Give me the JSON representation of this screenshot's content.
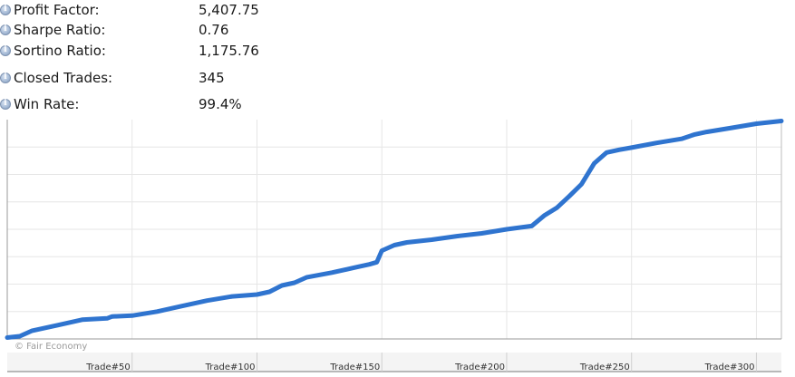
{
  "stats": [
    {
      "label": "Profit Factor:",
      "value": "5,407.75"
    },
    {
      "label": "Sharpe Ratio:",
      "value": "0.76"
    },
    {
      "label": "Sortino Ratio:",
      "value": "1,175.76"
    },
    {
      "label": "Closed Trades:",
      "value": "345"
    },
    {
      "label": "Win Rate:",
      "value": "99.4%"
    }
  ],
  "chart_data": {
    "type": "line",
    "title": "",
    "xlabel": "",
    "ylabel": "",
    "x_tick_labels": [
      "Trade#50",
      "Trade#100",
      "Trade#150",
      "Trade#200",
      "Trade#250",
      "Trade#300"
    ],
    "x_tick_values": [
      50,
      100,
      150,
      200,
      250,
      300
    ],
    "xlim": [
      0,
      310
    ],
    "ylim": [
      0,
      8
    ],
    "grid": true,
    "y_tick_labels_shown": false,
    "line_color": "#2f74cf",
    "watermark": "© Fair Economy",
    "series": [
      {
        "x": [
          0,
          5,
          10,
          20,
          30,
          40,
          42,
          50,
          60,
          70,
          80,
          90,
          100,
          105,
          110,
          115,
          120,
          130,
          140,
          145,
          148,
          150,
          155,
          160,
          170,
          180,
          190,
          200,
          210,
          215,
          220,
          225,
          230,
          235,
          240,
          245,
          250,
          260,
          270,
          275,
          280,
          290,
          300,
          310
        ],
        "y": [
          0.05,
          0.1,
          0.3,
          0.5,
          0.7,
          0.75,
          0.82,
          0.85,
          1.0,
          1.2,
          1.4,
          1.55,
          1.62,
          1.72,
          1.95,
          2.05,
          2.25,
          2.42,
          2.62,
          2.72,
          2.8,
          3.22,
          3.42,
          3.52,
          3.62,
          3.75,
          3.85,
          4.0,
          4.12,
          4.5,
          4.78,
          5.2,
          5.65,
          6.4,
          6.8,
          6.9,
          6.98,
          7.15,
          7.3,
          7.45,
          7.55,
          7.7,
          7.85,
          7.95
        ]
      }
    ]
  }
}
